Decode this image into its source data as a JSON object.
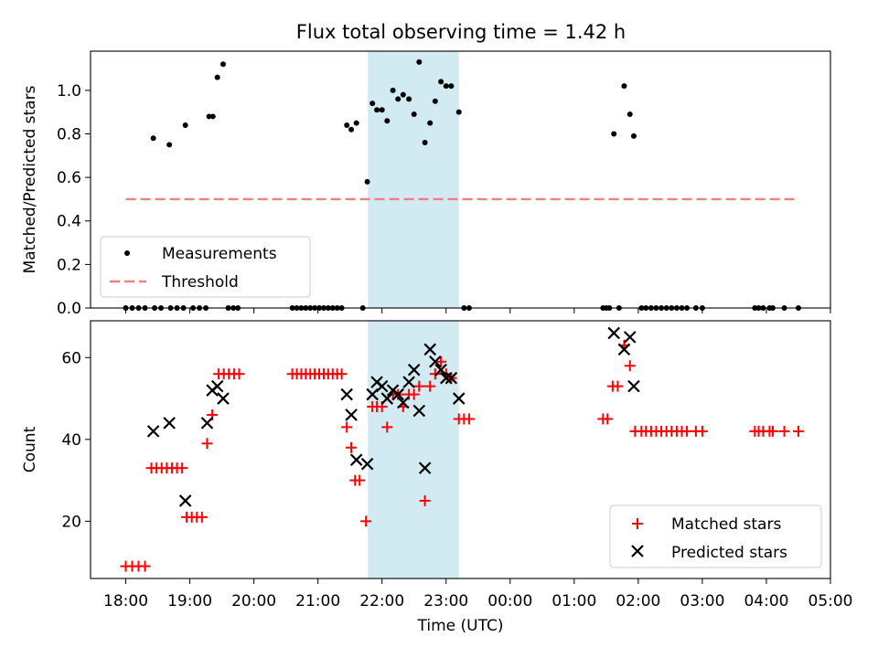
{
  "title": "Flux total observing time = 1.42 h",
  "shared": {
    "x_axis_label": "Time (UTC)",
    "x_tick_labels": [
      "18:00",
      "19:00",
      "20:00",
      "21:00",
      "22:00",
      "23:00",
      "00:00",
      "01:00",
      "02:00",
      "03:00",
      "04:00",
      "05:00"
    ],
    "x_range_hours": [
      17.45,
      29.0
    ],
    "highlight_span_hours": [
      21.78,
      23.2
    ],
    "highlight_color": "#add8e6"
  },
  "chart_data": [
    {
      "type": "scatter",
      "panel": "top",
      "ylabel": "Matched/Predicted stars",
      "ylim": [
        0,
        1.18
      ],
      "y_ticks": [
        0.0,
        0.2,
        0.4,
        0.6,
        0.8,
        1.0
      ],
      "y_tick_labels": [
        "0.0",
        "0.2",
        "0.4",
        "0.6",
        "0.8",
        "1.0"
      ],
      "legend": {
        "position": "lower-left",
        "entries": [
          "Measurements",
          "Threshold"
        ]
      },
      "threshold": {
        "name": "Threshold",
        "y": 0.5,
        "x_range": [
          18.0,
          28.5
        ],
        "color": "#f08080"
      },
      "series": [
        {
          "name": "Measurements",
          "color": "#000000",
          "points": [
            [
              18.0,
              0
            ],
            [
              18.1,
              0
            ],
            [
              18.2,
              0
            ],
            [
              18.3,
              0
            ],
            [
              18.45,
              0
            ],
            [
              18.55,
              0
            ],
            [
              18.7,
              0
            ],
            [
              18.8,
              0
            ],
            [
              18.9,
              0
            ],
            [
              19.05,
              0
            ],
            [
              19.15,
              0
            ],
            [
              19.25,
              0
            ],
            [
              18.43,
              0.78
            ],
            [
              18.68,
              0.75
            ],
            [
              18.93,
              0.84
            ],
            [
              19.3,
              0.88
            ],
            [
              19.36,
              0.88
            ],
            [
              19.43,
              1.06
            ],
            [
              19.52,
              1.12
            ],
            [
              19.6,
              0
            ],
            [
              19.68,
              0
            ],
            [
              19.75,
              0
            ],
            [
              20.6,
              0
            ],
            [
              20.67,
              0
            ],
            [
              20.74,
              0
            ],
            [
              20.81,
              0
            ],
            [
              20.88,
              0
            ],
            [
              20.95,
              0
            ],
            [
              21.02,
              0
            ],
            [
              21.09,
              0
            ],
            [
              21.16,
              0
            ],
            [
              21.23,
              0
            ],
            [
              21.3,
              0
            ],
            [
              21.37,
              0
            ],
            [
              21.45,
              0.84
            ],
            [
              21.52,
              0.82
            ],
            [
              21.6,
              0.85
            ],
            [
              21.7,
              0
            ],
            [
              21.77,
              0.58
            ],
            [
              21.85,
              0.94
            ],
            [
              21.92,
              0.91
            ],
            [
              22.0,
              0.91
            ],
            [
              22.08,
              0.86
            ],
            [
              22.17,
              1.0
            ],
            [
              22.25,
              0.96
            ],
            [
              22.33,
              0.98
            ],
            [
              22.42,
              0.96
            ],
            [
              22.5,
              0.89
            ],
            [
              22.58,
              1.13
            ],
            [
              22.67,
              0.76
            ],
            [
              22.75,
              0.85
            ],
            [
              22.83,
              0.95
            ],
            [
              22.92,
              1.04
            ],
            [
              23.0,
              1.02
            ],
            [
              23.08,
              1.02
            ],
            [
              23.2,
              0.9
            ],
            [
              23.28,
              0
            ],
            [
              23.36,
              0
            ],
            [
              25.45,
              0
            ],
            [
              25.5,
              0
            ],
            [
              25.55,
              0
            ],
            [
              25.62,
              0.8
            ],
            [
              25.7,
              0
            ],
            [
              25.78,
              1.02
            ],
            [
              25.87,
              0.89
            ],
            [
              25.93,
              0.79
            ],
            [
              26.05,
              0
            ],
            [
              26.12,
              0
            ],
            [
              26.2,
              0
            ],
            [
              26.28,
              0
            ],
            [
              26.36,
              0
            ],
            [
              26.44,
              0
            ],
            [
              26.52,
              0
            ],
            [
              26.6,
              0
            ],
            [
              26.68,
              0
            ],
            [
              26.76,
              0
            ],
            [
              26.9,
              0
            ],
            [
              27.0,
              0
            ],
            [
              27.82,
              0
            ],
            [
              27.88,
              0
            ],
            [
              27.95,
              0
            ],
            [
              28.05,
              0
            ],
            [
              28.1,
              0
            ],
            [
              28.28,
              0
            ],
            [
              28.5,
              0
            ]
          ]
        }
      ]
    },
    {
      "type": "scatter",
      "panel": "bottom",
      "ylabel": "Count",
      "ylim": [
        6,
        69
      ],
      "y_ticks": [
        20,
        40,
        60
      ],
      "y_tick_labels": [
        "20",
        "40",
        "60"
      ],
      "legend": {
        "position": "lower-right",
        "entries": [
          "Matched stars",
          "Predicted stars"
        ]
      },
      "series": [
        {
          "name": "Matched stars",
          "marker": "plus",
          "color": "#ff0000",
          "points": [
            [
              18.0,
              9
            ],
            [
              18.1,
              9
            ],
            [
              18.2,
              9
            ],
            [
              18.3,
              9
            ],
            [
              18.4,
              33
            ],
            [
              18.48,
              33
            ],
            [
              18.56,
              33
            ],
            [
              18.64,
              33
            ],
            [
              18.72,
              33
            ],
            [
              18.8,
              33
            ],
            [
              18.88,
              33
            ],
            [
              18.95,
              21
            ],
            [
              19.03,
              21
            ],
            [
              19.11,
              21
            ],
            [
              19.19,
              21
            ],
            [
              19.27,
              39
            ],
            [
              19.35,
              46
            ],
            [
              19.45,
              56
            ],
            [
              19.53,
              56
            ],
            [
              19.61,
              56
            ],
            [
              19.69,
              56
            ],
            [
              19.77,
              56
            ],
            [
              20.6,
              56
            ],
            [
              20.67,
              56
            ],
            [
              20.74,
              56
            ],
            [
              20.81,
              56
            ],
            [
              20.88,
              56
            ],
            [
              20.95,
              56
            ],
            [
              21.02,
              56
            ],
            [
              21.09,
              56
            ],
            [
              21.16,
              56
            ],
            [
              21.23,
              56
            ],
            [
              21.3,
              56
            ],
            [
              21.37,
              56
            ],
            [
              21.45,
              43
            ],
            [
              21.52,
              38
            ],
            [
              21.58,
              30
            ],
            [
              21.65,
              30
            ],
            [
              21.75,
              20
            ],
            [
              21.85,
              48
            ],
            [
              21.92,
              48
            ],
            [
              22.0,
              48
            ],
            [
              22.08,
              43
            ],
            [
              22.17,
              51
            ],
            [
              22.25,
              51
            ],
            [
              22.33,
              48
            ],
            [
              22.42,
              51
            ],
            [
              22.5,
              51
            ],
            [
              22.58,
              53
            ],
            [
              22.67,
              25
            ],
            [
              22.75,
              53
            ],
            [
              22.83,
              56
            ],
            [
              22.92,
              59
            ],
            [
              23.0,
              56
            ],
            [
              23.08,
              55
            ],
            [
              23.2,
              45
            ],
            [
              23.28,
              45
            ],
            [
              23.36,
              45
            ],
            [
              25.45,
              45
            ],
            [
              25.52,
              45
            ],
            [
              25.6,
              53
            ],
            [
              25.68,
              53
            ],
            [
              25.78,
              63
            ],
            [
              25.87,
              58
            ],
            [
              25.95,
              42
            ],
            [
              26.05,
              42
            ],
            [
              26.12,
              42
            ],
            [
              26.2,
              42
            ],
            [
              26.28,
              42
            ],
            [
              26.36,
              42
            ],
            [
              26.44,
              42
            ],
            [
              26.52,
              42
            ],
            [
              26.6,
              42
            ],
            [
              26.68,
              42
            ],
            [
              26.76,
              42
            ],
            [
              26.9,
              42
            ],
            [
              27.0,
              42
            ],
            [
              27.82,
              42
            ],
            [
              27.88,
              42
            ],
            [
              27.95,
              42
            ],
            [
              28.05,
              42
            ],
            [
              28.1,
              42
            ],
            [
              28.28,
              42
            ],
            [
              28.5,
              42
            ]
          ]
        },
        {
          "name": "Predicted stars",
          "marker": "x",
          "color": "#000000",
          "points": [
            [
              18.43,
              42
            ],
            [
              18.68,
              44
            ],
            [
              18.93,
              25
            ],
            [
              19.27,
              44
            ],
            [
              19.35,
              52
            ],
            [
              19.43,
              53
            ],
            [
              19.52,
              50
            ],
            [
              21.45,
              51
            ],
            [
              21.52,
              46
            ],
            [
              21.6,
              35
            ],
            [
              21.77,
              34
            ],
            [
              21.85,
              51
            ],
            [
              21.92,
              54
            ],
            [
              22.0,
              53
            ],
            [
              22.08,
              50
            ],
            [
              22.17,
              52
            ],
            [
              22.25,
              51
            ],
            [
              22.33,
              49
            ],
            [
              22.42,
              54
            ],
            [
              22.5,
              57
            ],
            [
              22.58,
              47
            ],
            [
              22.67,
              33
            ],
            [
              22.75,
              62
            ],
            [
              22.83,
              59
            ],
            [
              22.92,
              57
            ],
            [
              23.0,
              55
            ],
            [
              23.08,
              55
            ],
            [
              23.2,
              50
            ],
            [
              25.62,
              66
            ],
            [
              25.78,
              62
            ],
            [
              25.87,
              65
            ],
            [
              25.93,
              53
            ]
          ]
        }
      ]
    }
  ]
}
